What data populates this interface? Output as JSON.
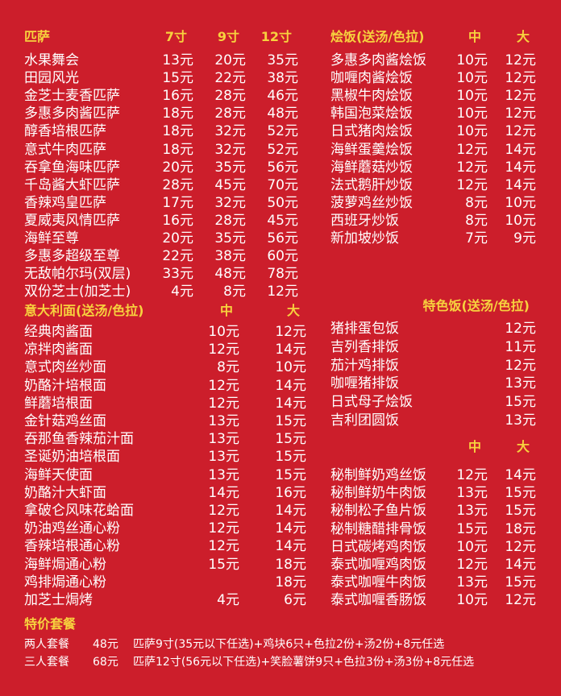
{
  "tables": [
    {
      "header": [
        "匹萨",
        "7寸",
        "9寸",
        "12寸"
      ],
      "rows": [
        [
          "水果舞会",
          "13元",
          "20元",
          "35元"
        ],
        [
          "田园风光",
          "15元",
          "22元",
          "38元"
        ],
        [
          "金芝士麦香匹萨",
          "16元",
          "28元",
          "46元"
        ],
        [
          "多惠多肉酱匹萨",
          "18元",
          "28元",
          "48元"
        ],
        [
          "醇香培根匹萨",
          "18元",
          "32元",
          "52元"
        ],
        [
          "意式牛肉匹萨",
          "18元",
          "32元",
          "52元"
        ],
        [
          "吞拿鱼海味匹萨",
          "20元",
          "35元",
          "56元"
        ],
        [
          "千岛酱大虾匹萨",
          "28元",
          "45元",
          "70元"
        ],
        [
          "香辣鸡皇匹萨",
          "17元",
          "32元",
          "50元"
        ],
        [
          "夏威夷风情匹萨",
          "16元",
          "28元",
          "45元"
        ],
        [
          "海鲜至尊",
          "20元",
          "35元",
          "56元"
        ],
        [
          "多惠多超级至尊",
          "22元",
          "38元",
          "60元"
        ],
        [
          "无敌帕尔玛(双层)",
          "33元",
          "48元",
          "78元"
        ],
        [
          "双份芝士(加芝士)",
          "4元",
          "8元",
          "12元"
        ]
      ]
    },
    {
      "header": [
        "意大利面(送汤/色拉)",
        "中",
        "大"
      ],
      "rows": [
        [
          "经典肉酱面",
          "10元",
          "12元"
        ],
        [
          "凉拌肉酱面",
          "12元",
          "14元"
        ],
        [
          "意式肉丝炒面",
          "8元",
          "10元"
        ],
        [
          "奶酪汁培根面",
          "12元",
          "14元"
        ],
        [
          "鲜蘑培根面",
          "12元",
          "14元"
        ],
        [
          "金针菇鸡丝面",
          "13元",
          "15元"
        ],
        [
          "吞那鱼香辣茄汁面",
          "13元",
          "15元"
        ],
        [
          "圣诞奶油培根面",
          "13元",
          "15元"
        ],
        [
          "海鲜天使面",
          "13元",
          "15元"
        ],
        [
          "奶酪汁大虾面",
          "14元",
          "16元"
        ],
        [
          "拿破仑风味花蛤面",
          "12元",
          "14元"
        ],
        [
          "奶油鸡丝通心粉",
          "12元",
          "14元"
        ],
        [
          "香辣培根通心粉",
          "12元",
          "14元"
        ],
        [
          "海鲜焗通心粉",
          "15元",
          "18元"
        ],
        [
          "鸡排焗通心粉",
          null,
          "18元"
        ],
        [
          "加芝士焗烤",
          "4元",
          "6元"
        ]
      ]
    },
    {
      "header": [
        "烩饭(送汤/色拉)",
        "中",
        "大"
      ],
      "rows": [
        [
          "多惠多肉酱烩饭",
          "10元",
          "12元"
        ],
        [
          "咖喱肉酱烩饭",
          "10元",
          "12元"
        ],
        [
          "黑椒牛肉烩饭",
          "10元",
          "12元"
        ],
        [
          "韩国泡菜烩饭",
          "10元",
          "12元"
        ],
        [
          "日式猪肉烩饭",
          "10元",
          "12元"
        ],
        [
          "海鲜蛋羹烩饭",
          "12元",
          "14元"
        ],
        [
          "海鲜蘑菇炒饭",
          "12元",
          "14元"
        ],
        [
          "法式鹅肝炒饭",
          "12元",
          "14元"
        ],
        [
          "菠萝鸡丝炒饭",
          "8元",
          "10元"
        ],
        [
          "西班牙炒饭",
          "8元",
          "10元"
        ],
        [
          "新加坡炒饭",
          "7元",
          "9元"
        ]
      ]
    },
    {
      "header": [
        "特色饭(送汤/色拉)"
      ],
      "rows": [
        [
          "猪排蛋包饭",
          "12元"
        ],
        [
          "吉列香排饭",
          "11元"
        ],
        [
          "茄汁鸡排饭",
          "12元"
        ],
        [
          "咖喱猪排饭",
          "13元"
        ],
        [
          "日式母子烩饭",
          "15元"
        ],
        [
          "吉利团圆饭",
          "13元"
        ]
      ]
    },
    {
      "header": [
        "中",
        "大"
      ],
      "rows": [
        [
          "秘制鲜奶鸡丝饭",
          "12元",
          "14元"
        ],
        [
          "秘制鲜奶牛肉饭",
          "13元",
          "15元"
        ],
        [
          "秘制松子鱼片饭",
          "13元",
          "15元"
        ],
        [
          "秘制糖醋排骨饭",
          "15元",
          "18元"
        ],
        [
          "日式碳烤鸡肉饭",
          "10元",
          "12元"
        ],
        [
          "泰式咖喱鸡肉饭",
          "12元",
          "14元"
        ],
        [
          "泰式咖喱牛肉饭",
          "13元",
          "15元"
        ],
        [
          "泰式咖喱香肠饭",
          "10元",
          "12元"
        ]
      ]
    }
  ],
  "combos": {
    "title": "特价套餐",
    "rows": [
      [
        "两人套餐",
        "48元",
        "匹萨9寸(35元以下任选)+鸡块6只+色拉2份+汤2份+8元任选"
      ],
      [
        "三人套餐",
        "68元",
        "匹萨12寸(56元以下任选)+笑脸薯饼9只+色拉3份+汤3份+8元任选"
      ]
    ]
  }
}
